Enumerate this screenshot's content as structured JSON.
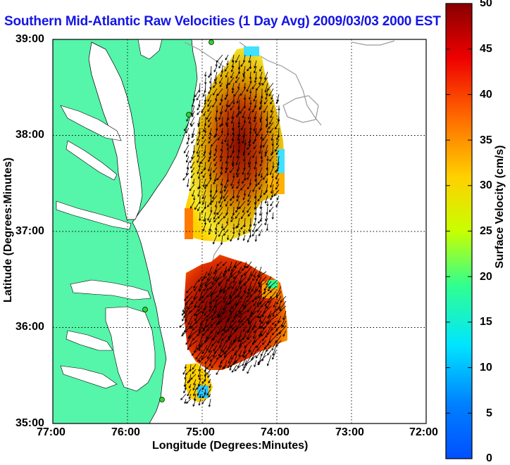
{
  "title": "Southern Mid-Atlantic Raw Velocities (1 Day Avg) 2009/03/03 2000 EST",
  "xlabel": "Longitude (Degrees:Minutes)",
  "ylabel": "Latitude (Degrees:Minutes)",
  "colorbar_label": "Surface Velocity (cm/s)",
  "x_ticks": [
    "77:00",
    "76:00",
    "75:00",
    "74:00",
    "73:00",
    "72:00"
  ],
  "y_ticks": [
    "39:00",
    "38:00",
    "37:00",
    "36:00",
    "35:00"
  ],
  "colorbar_ticks": [
    "50",
    "45",
    "40",
    "35",
    "30",
    "25",
    "20",
    "15",
    "10",
    "5",
    "0"
  ],
  "colors": {
    "land": "#55f5aa",
    "title": "#1414e6",
    "station": "#2ad82a"
  },
  "map_extent": {
    "lon": [
      -77,
      -72
    ],
    "lat": [
      35,
      39
    ]
  },
  "colorbar_range": [
    0,
    50
  ]
}
